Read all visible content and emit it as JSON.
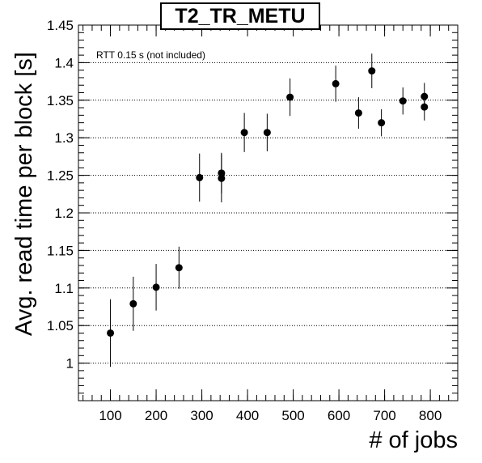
{
  "chart_data": {
    "type": "scatter",
    "title": "T2_TR_METU",
    "xlabel": "# of jobs",
    "ylabel": "Avg. read time per block [s]",
    "annotation": "RTT 0.15 s (not included)",
    "xlim": [
      30,
      860
    ],
    "ylim": [
      0.95,
      1.45
    ],
    "xticks": [
      100,
      200,
      300,
      400,
      500,
      600,
      700,
      800
    ],
    "yticks": [
      1,
      1.05,
      1.1,
      1.15,
      1.2,
      1.25,
      1.3,
      1.35,
      1.4,
      1.45
    ],
    "grid": "horizontal dotted",
    "series": [
      {
        "points": [
          {
            "x": 100,
            "y": 1.04,
            "err": 0.045
          },
          {
            "x": 150,
            "y": 1.079,
            "err": 0.036
          },
          {
            "x": 200,
            "y": 1.101,
            "err": 0.031
          },
          {
            "x": 250,
            "y": 1.127,
            "err": 0.028
          },
          {
            "x": 295,
            "y": 1.247,
            "err": 0.032
          },
          {
            "x": 343,
            "y": 1.253,
            "err": 0.027
          },
          {
            "x": 343,
            "y": 1.246,
            "err": 0.032
          },
          {
            "x": 393,
            "y": 1.307,
            "err": 0.026
          },
          {
            "x": 443,
            "y": 1.307,
            "err": 0.025
          },
          {
            "x": 493,
            "y": 1.354,
            "err": 0.025
          },
          {
            "x": 593,
            "y": 1.372,
            "err": 0.024
          },
          {
            "x": 643,
            "y": 1.333,
            "err": 0.021
          },
          {
            "x": 672,
            "y": 1.389,
            "err": 0.023
          },
          {
            "x": 693,
            "y": 1.32,
            "err": 0.018
          },
          {
            "x": 740,
            "y": 1.349,
            "err": 0.018
          },
          {
            "x": 787,
            "y": 1.355,
            "err": 0.018
          },
          {
            "x": 787,
            "y": 1.341,
            "err": 0.018
          }
        ]
      }
    ]
  }
}
